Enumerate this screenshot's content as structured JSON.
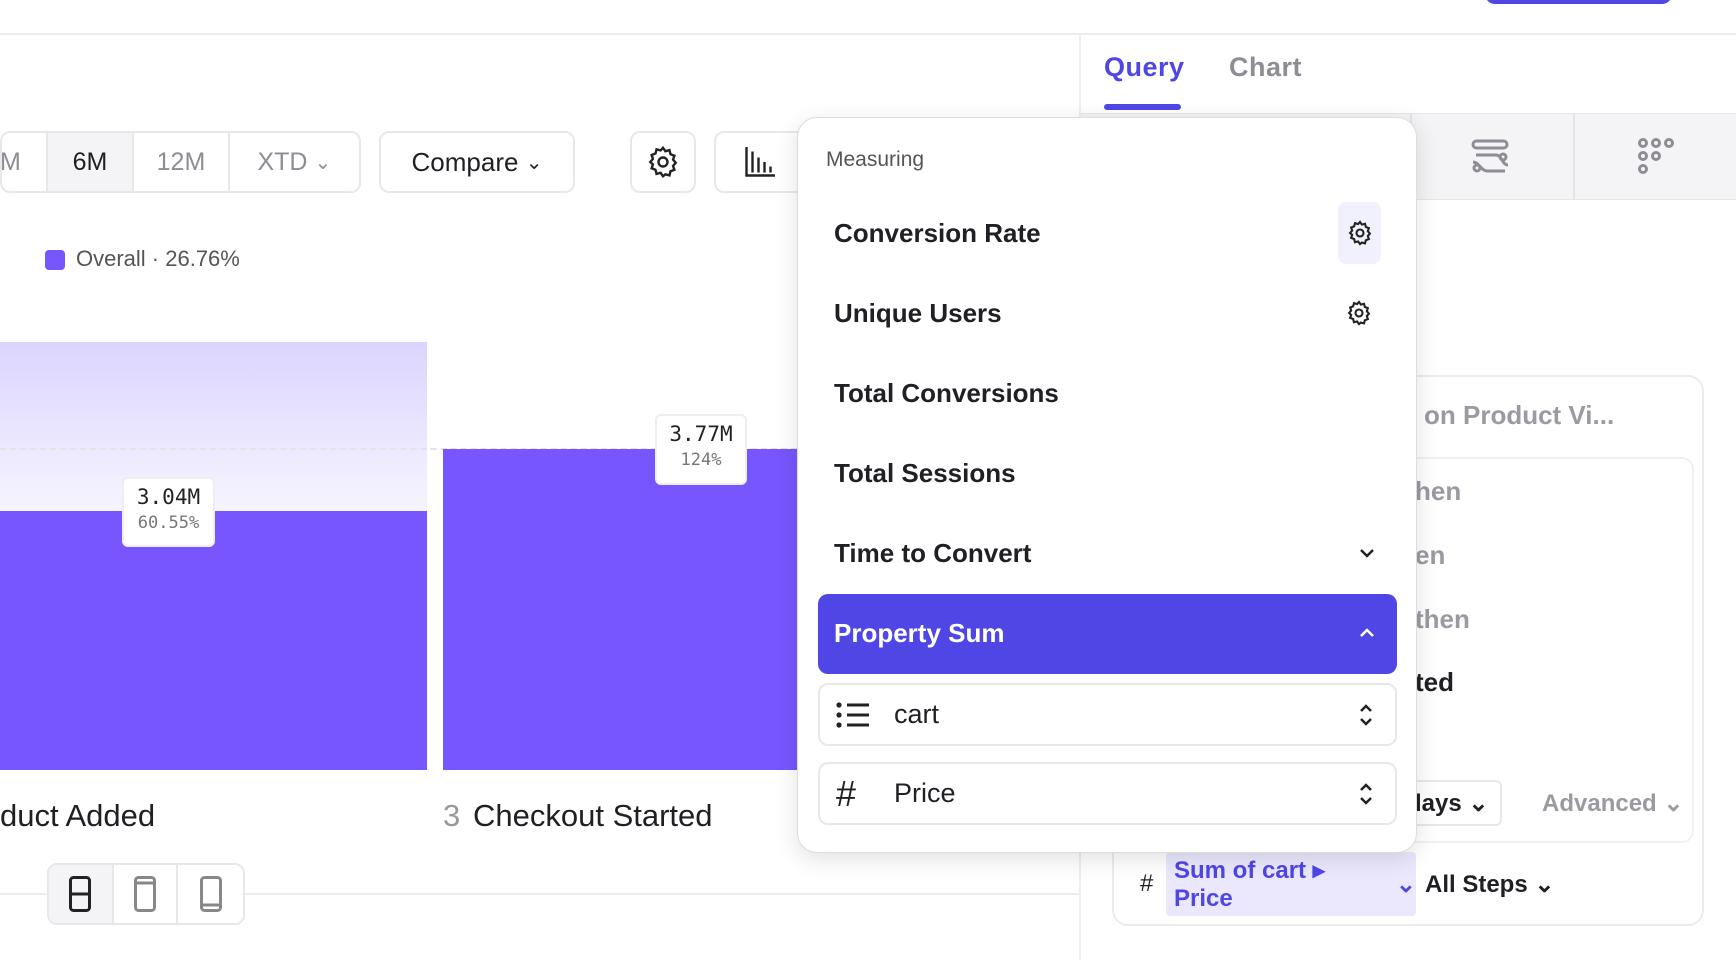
{
  "header": {
    "primary_button_color": "#4f46e5"
  },
  "panel_tabs": [
    {
      "label": "Query",
      "active": true
    },
    {
      "label": "Chart",
      "active": false
    }
  ],
  "viz_icons": [
    "flows-icon",
    "grid-dots-icon"
  ],
  "toolbar": {
    "ranges": [
      "M",
      "6M",
      "12M",
      "XTD"
    ],
    "selected_range": "6M",
    "compare": "Compare"
  },
  "legend": {
    "label": "Overall · 26.76%",
    "color": "#7856ff"
  },
  "chart_data": {
    "type": "bar",
    "categories": [
      "Product Added",
      "Checkout Started"
    ],
    "step_numbers": [
      "",
      "3"
    ],
    "category_labels": [
      "duct Added",
      "Checkout Started"
    ],
    "series": [
      {
        "values": [
          3.04,
          3.77
        ]
      }
    ],
    "data_labels": [
      {
        "value": "3.04M",
        "pct": "60.55%"
      },
      {
        "value": "3.77M",
        "pct": "124%"
      }
    ]
  },
  "popup": {
    "title": "Measuring",
    "items": [
      {
        "label": "Conversion Rate",
        "icon": "gear-icon"
      },
      {
        "label": "Unique Users",
        "icon": "gear-icon"
      },
      {
        "label": "Total Conversions"
      },
      {
        "label": "Total Sessions"
      },
      {
        "label": "Time to Convert",
        "icon": "chevron-down-icon"
      },
      {
        "label": "Property Sum",
        "icon": "chevron-up-icon",
        "selected": true
      }
    ],
    "property_list": "cart",
    "property_number": "Price"
  },
  "query": {
    "title": "on Product Vi...",
    "steps": [
      "hen",
      "en",
      "then",
      "ted"
    ],
    "window": "lays",
    "advanced": "Advanced",
    "measure_hash": "#",
    "measure_pill": "Sum of cart ▸ Price",
    "all_steps": "All Steps"
  }
}
